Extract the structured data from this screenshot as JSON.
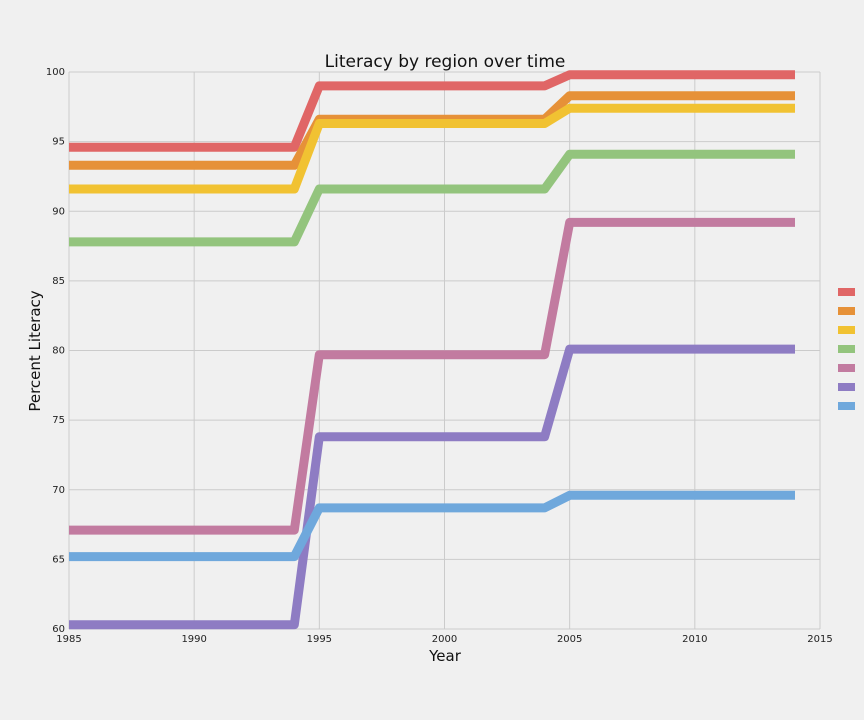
{
  "chart_data": {
    "type": "line",
    "title": "Literacy by region over time",
    "xlabel": "Year",
    "ylabel": "Percent Literacy",
    "xlim": [
      1985,
      2015
    ],
    "ylim": [
      60,
      100
    ],
    "xticks": [
      "1985",
      "1990",
      "1995",
      "2000",
      "2005",
      "2010",
      "2015"
    ],
    "yticks": [
      "60",
      "65",
      "70",
      "75",
      "80",
      "85",
      "90",
      "95",
      "100"
    ],
    "grid": true,
    "legend": "right, entries unlabeled",
    "x": [
      1985,
      1994,
      1995,
      2004,
      2005,
      2014
    ],
    "series": [
      {
        "color": "#e06666",
        "values": [
          94.6,
          94.6,
          99.0,
          99.0,
          99.8,
          99.8
        ]
      },
      {
        "color": "#e69138",
        "values": [
          93.3,
          93.3,
          96.6,
          96.6,
          98.3,
          98.3
        ]
      },
      {
        "color": "#f1c232",
        "values": [
          91.6,
          91.6,
          96.3,
          96.3,
          97.4,
          97.4
        ]
      },
      {
        "color": "#93c47d",
        "values": [
          87.8,
          87.8,
          91.6,
          91.6,
          94.1,
          94.1
        ]
      },
      {
        "color": "#c27ba0",
        "values": [
          67.1,
          67.1,
          79.7,
          79.7,
          89.2,
          89.2
        ]
      },
      {
        "color": "#8e7cc3",
        "values": [
          60.3,
          60.3,
          73.8,
          73.8,
          80.1,
          80.1
        ]
      },
      {
        "color": "#6fa8dc",
        "values": [
          65.2,
          65.2,
          68.7,
          68.7,
          69.6,
          69.6
        ]
      }
    ]
  }
}
